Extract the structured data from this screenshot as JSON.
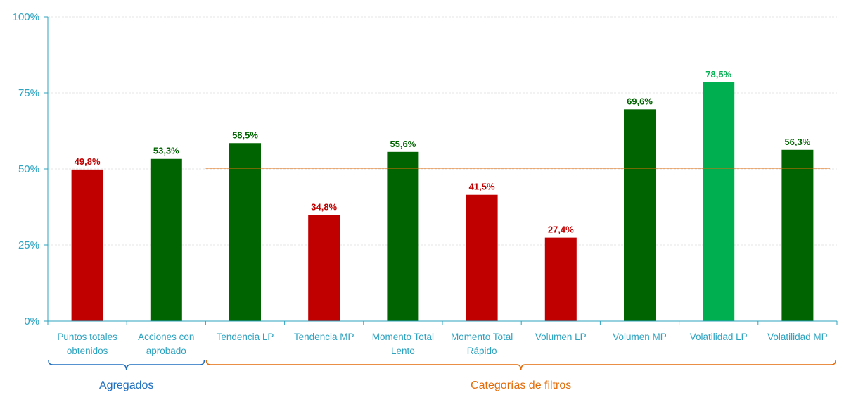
{
  "chart_data": {
    "type": "bar",
    "categories": [
      [
        "Puntos totales",
        "obtenidos"
      ],
      [
        "Acciones con",
        "aprobado"
      ],
      [
        "Tendencia LP"
      ],
      [
        "Tendencia MP"
      ],
      [
        "Momento Total",
        "Lento"
      ],
      [
        "Momento Total",
        "Rápido"
      ],
      [
        "Volumen LP"
      ],
      [
        "Volumen MP"
      ],
      [
        "Volatilidad LP"
      ],
      [
        "Volatilidad MP"
      ]
    ],
    "values": [
      49.8,
      53.3,
      58.5,
      34.8,
      55.6,
      41.5,
      27.4,
      69.6,
      78.5,
      56.3
    ],
    "data_labels": [
      "49,8%",
      "53,3%",
      "58,5%",
      "34,8%",
      "55,6%",
      "41,5%",
      "27,4%",
      "69,6%",
      "78,5%",
      "56,3%"
    ],
    "bar_colors": [
      "#c00000",
      "#006400",
      "#006400",
      "#c00000",
      "#006400",
      "#c00000",
      "#c00000",
      "#006400",
      "#00b050",
      "#006400"
    ],
    "ylim": [
      0,
      100
    ],
    "yticks": [
      0,
      25,
      50,
      75,
      100
    ],
    "ytick_labels": [
      "0%",
      "25%",
      "50%",
      "75%",
      "100%"
    ],
    "grid": true,
    "reference_line": {
      "value": 50.3,
      "from_category": 2,
      "to_category": 9,
      "color": "#e36c09"
    },
    "groups": [
      {
        "label": "Agregados",
        "from_category": 0,
        "to_category": 1,
        "color": "#1f6fbf"
      },
      {
        "label": "Categorías de filtros",
        "from_category": 2,
        "to_category": 9,
        "color": "#e36c09"
      }
    ],
    "axis_color": "#2ea3c0",
    "grid_color": "#e6e6e6"
  }
}
